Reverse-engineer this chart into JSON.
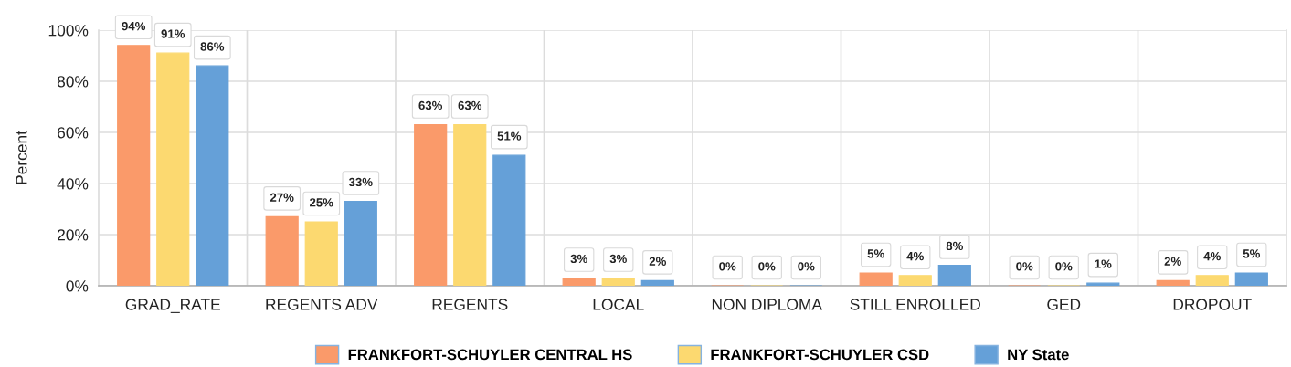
{
  "chart_data": {
    "type": "bar",
    "ylabel": "Percent",
    "categories": [
      "GRAD_RATE",
      "REGENTS ADV",
      "REGENTS",
      "LOCAL",
      "NON DIPLOMA",
      "STILL ENROLLED",
      "GED",
      "DROPOUT"
    ],
    "series": [
      {
        "name": "FRANKFORT-SCHUYLER CENTRAL HS",
        "color": "#fa9a6a",
        "values": [
          94,
          27,
          63,
          3,
          0,
          5,
          0,
          2
        ],
        "value_labels": [
          "94%",
          "27%",
          "63%",
          "3%",
          "0%",
          "5%",
          "0%",
          "2%"
        ]
      },
      {
        "name": "FRANKFORT-SCHUYLER CSD",
        "color": "#fcd970",
        "values": [
          91,
          25,
          63,
          3,
          0,
          4,
          0,
          4
        ],
        "value_labels": [
          "91%",
          "25%",
          "63%",
          "3%",
          "0%",
          "4%",
          "0%",
          "4%"
        ]
      },
      {
        "name": "NY State",
        "color": "#65a0d8",
        "values": [
          86,
          33,
          51,
          2,
          0,
          8,
          1,
          5
        ],
        "value_labels": [
          "86%",
          "33%",
          "51%",
          "2%",
          "0%",
          "8%",
          "1%",
          "5%"
        ]
      }
    ],
    "ylim": [
      0,
      100
    ],
    "yticks": [
      {
        "value": 0,
        "label": "0%"
      },
      {
        "value": 20,
        "label": "20%"
      },
      {
        "value": 40,
        "label": "40%"
      },
      {
        "value": 60,
        "label": "60%"
      },
      {
        "value": 80,
        "label": "80%"
      },
      {
        "value": 100,
        "label": "100%"
      }
    ],
    "grid": true,
    "legend": "bottom"
  }
}
